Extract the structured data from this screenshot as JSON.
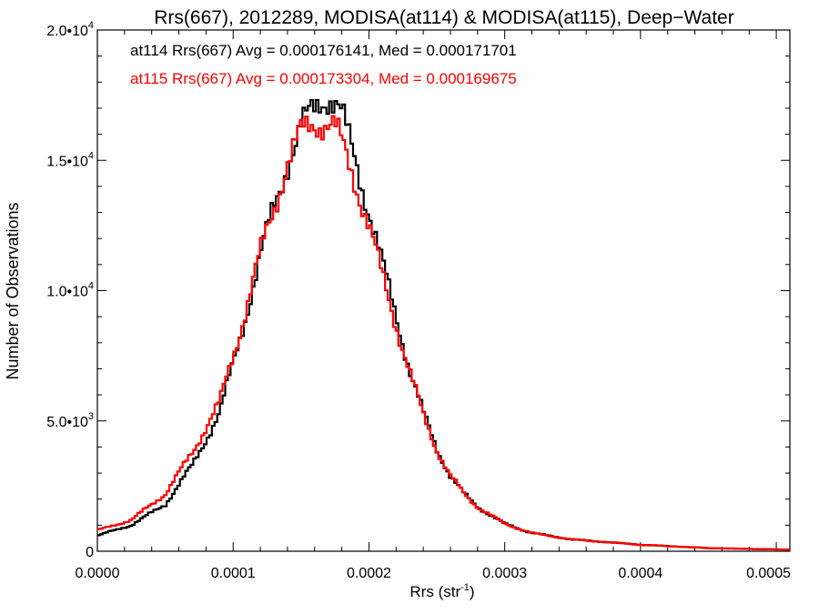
{
  "chart_data": {
    "type": "line",
    "title": "Rrs(667), 2012289, MODISA(at114) & MODISA(at115), Deep−Water",
    "xlabel": "Rrs (str",
    "xlabel_sup": "-1",
    "xlabel_close": ")",
    "ylabel": "Number of Observations",
    "xlim": [
      0,
      0.00051
    ],
    "ylim": [
      0,
      20000
    ],
    "x_ticks": [
      0,
      0.0001,
      0.0002,
      0.0003,
      0.0004,
      0.0005
    ],
    "x_tick_labels": [
      "0.0000",
      "0.0001",
      "0.0002",
      "0.0003",
      "0.0004",
      "0.0005"
    ],
    "y_ticks": [
      0,
      5000,
      10000,
      15000,
      20000
    ],
    "y_tick_labels": [
      {
        "base": "0",
        "sup": ""
      },
      {
        "base": "5.0•10",
        "sup": "3"
      },
      {
        "base": "1.0•10",
        "sup": "4"
      },
      {
        "base": "1.5•10",
        "sup": "4"
      },
      {
        "base": "2.0•10",
        "sup": "4"
      }
    ],
    "annotations": [
      {
        "text": "at114 Rrs(667) Avg = 0.000176141, Med = 0.000171701",
        "color": "#000000"
      },
      {
        "text": "at115 Rrs(667) Avg = 0.000173304, Med = 0.000169675",
        "color": "#ff0000"
      }
    ],
    "series": [
      {
        "color": "#000000",
        "x": [
          0,
          2.5e-05,
          5e-05,
          7e-05,
          9e-05,
          0.0001,
          0.00011,
          0.00012,
          0.00013,
          0.00014,
          0.00015,
          0.00016,
          0.000165,
          0.00017,
          0.000175,
          0.00018,
          0.00019,
          0.0002,
          0.00021,
          0.00022,
          0.00023,
          0.00024,
          0.00025,
          0.00026,
          0.00027,
          0.00028,
          0.0003,
          0.00032,
          0.00035,
          0.0004,
          0.00045,
          0.00051
        ],
        "y": [
          600,
          1000,
          1800,
          3300,
          5300,
          7200,
          9200,
          11300,
          13200,
          14900,
          16200,
          17000,
          17400,
          17500,
          17200,
          16700,
          15000,
          13100,
          11000,
          9000,
          7000,
          5300,
          3900,
          2900,
          2200,
          1700,
          1050,
          700,
          450,
          250,
          120,
          60
        ]
      },
      {
        "color": "#ff0000",
        "x": [
          0,
          2.5e-05,
          5e-05,
          7e-05,
          9e-05,
          0.0001,
          0.00011,
          0.00012,
          0.00013,
          0.00014,
          0.00015,
          0.00016,
          0.000165,
          0.00017,
          0.000175,
          0.00018,
          0.00019,
          0.0002,
          0.00021,
          0.00022,
          0.00023,
          0.00024,
          0.00025,
          0.00026,
          0.00027,
          0.00028,
          0.0003,
          0.00032,
          0.00035,
          0.0004,
          0.00045,
          0.00051
        ],
        "y": [
          800,
          1200,
          2200,
          3800,
          5700,
          7500,
          9400,
          11400,
          13200,
          14900,
          16000,
          16500,
          16500,
          16400,
          16200,
          15600,
          14200,
          12500,
          10500,
          8700,
          6900,
          5200,
          3900,
          2900,
          2200,
          1700,
          1050,
          700,
          450,
          250,
          120,
          60
        ]
      }
    ],
    "grid": false,
    "legend": "none"
  }
}
